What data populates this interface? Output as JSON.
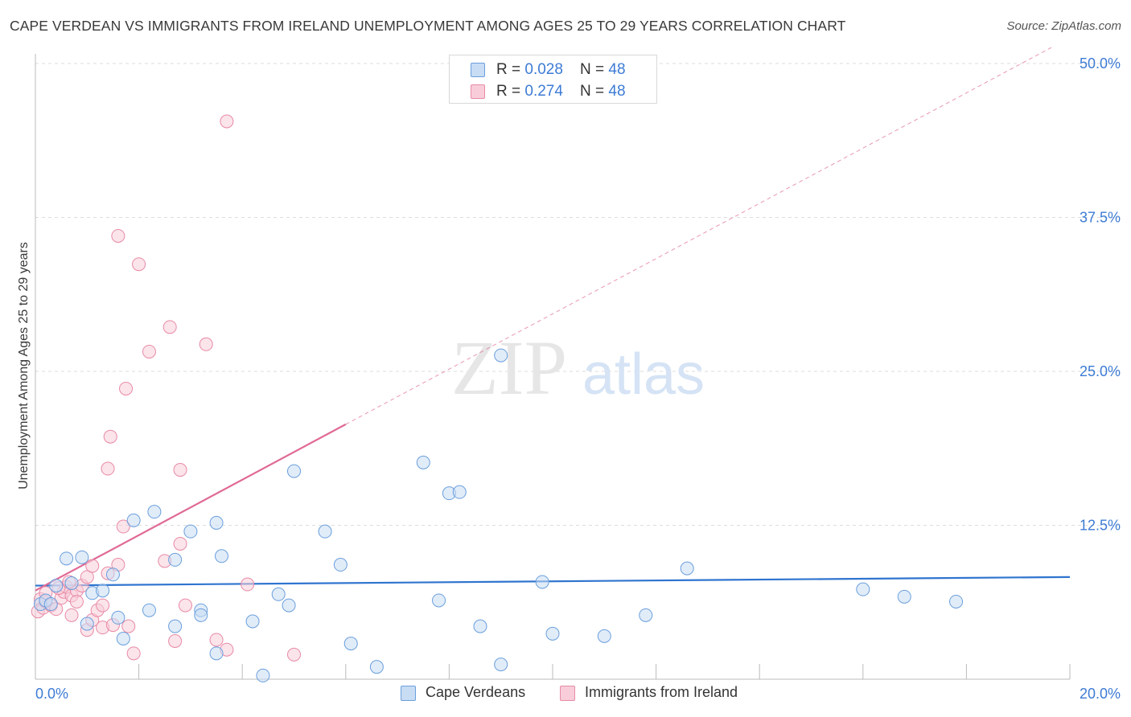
{
  "header": {
    "title": "CAPE VERDEAN VS IMMIGRANTS FROM IRELAND UNEMPLOYMENT AMONG AGES 25 TO 29 YEARS CORRELATION CHART",
    "source": "Source: ZipAtlas.com"
  },
  "watermark": {
    "zip": "ZIP",
    "atlas": "atlas"
  },
  "legend_top": {
    "rows": [
      {
        "r_label": "R = ",
        "r_value": "0.028",
        "n_label": "N = ",
        "n_value": "48"
      },
      {
        "r_label": "R = ",
        "r_value": "0.274",
        "n_label": "N = ",
        "n_value": "48"
      }
    ]
  },
  "colors": {
    "blue_fill": "#c8dcf4",
    "blue_stroke": "#6a9fdc",
    "blue_line": "#2f74cf",
    "pink_fill": "#f8cdd9",
    "pink_stroke": "#e88aa6",
    "pink_line": "#e06a95",
    "tick_label": "#3d7bd4",
    "grid": "#dddddd"
  },
  "chart_data": {
    "type": "scatter",
    "title": "CAPE VERDEAN VS IMMIGRANTS FROM IRELAND UNEMPLOYMENT AMONG AGES 25 TO 29 YEARS CORRELATION CHART",
    "xlabel": "",
    "ylabel": "Unemployment Among Ages 25 to 29 years",
    "xlim": [
      0,
      20
    ],
    "ylim": [
      0,
      50
    ],
    "x_tick_labels": [
      "0.0%",
      "20.0%"
    ],
    "y_ticks": [
      12.5,
      25,
      37.5,
      50
    ],
    "y_tick_labels": [
      "12.5%",
      "25.0%",
      "37.5%",
      "50.0%"
    ],
    "grid": true,
    "legend_position": "top-center",
    "series": [
      {
        "name": "Cape Verdeans",
        "color": "#6a9fdc",
        "r": 0.028,
        "n": 48,
        "trend": {
          "x": [
            0,
            20
          ],
          "y": [
            7.6,
            8.3
          ],
          "style": "solid"
        },
        "points": [
          [
            0.1,
            6.1
          ],
          [
            0.2,
            6.4
          ],
          [
            0.3,
            6.1
          ],
          [
            0.4,
            7.6
          ],
          [
            0.6,
            9.8
          ],
          [
            0.9,
            9.9
          ],
          [
            1.1,
            7.0
          ],
          [
            1.5,
            8.5
          ],
          [
            1.0,
            4.5
          ],
          [
            1.6,
            5.0
          ],
          [
            1.7,
            3.3
          ],
          [
            1.9,
            12.9
          ],
          [
            2.2,
            5.6
          ],
          [
            2.3,
            13.6
          ],
          [
            2.7,
            9.7
          ],
          [
            2.7,
            4.3
          ],
          [
            3.0,
            12.0
          ],
          [
            3.2,
            5.6
          ],
          [
            3.2,
            5.2
          ],
          [
            3.5,
            12.7
          ],
          [
            3.6,
            10.0
          ],
          [
            3.5,
            2.1
          ],
          [
            4.2,
            4.7
          ],
          [
            4.4,
            0.3
          ],
          [
            4.7,
            6.9
          ],
          [
            4.9,
            6.0
          ],
          [
            5.0,
            16.9
          ],
          [
            5.6,
            12.0
          ],
          [
            5.9,
            9.3
          ],
          [
            6.1,
            2.9
          ],
          [
            6.6,
            1.0
          ],
          [
            7.5,
            17.6
          ],
          [
            7.8,
            6.4
          ],
          [
            8.0,
            15.1
          ],
          [
            8.2,
            15.2
          ],
          [
            8.6,
            4.3
          ],
          [
            9.0,
            26.3
          ],
          [
            9.0,
            1.2
          ],
          [
            9.8,
            7.9
          ],
          [
            10.0,
            3.7
          ],
          [
            11.0,
            3.5
          ],
          [
            11.8,
            5.2
          ],
          [
            12.6,
            9.0
          ],
          [
            16.0,
            7.3
          ],
          [
            16.8,
            6.7
          ],
          [
            17.8,
            6.3
          ],
          [
            1.3,
            7.2
          ],
          [
            0.7,
            7.8
          ]
        ]
      },
      {
        "name": "Immigrants from Ireland",
        "color": "#e88aa6",
        "r": 0.274,
        "n": 48,
        "trend": {
          "x": [
            0,
            6
          ],
          "y": [
            7.2,
            20.7
          ],
          "style": "solid",
          "extended_to": [
            20,
            52.1
          ],
          "extended_style": "dashed"
        },
        "points": [
          [
            0.05,
            5.5
          ],
          [
            0.1,
            6.5
          ],
          [
            0.15,
            5.8
          ],
          [
            0.2,
            6.3
          ],
          [
            0.3,
            6.0
          ],
          [
            0.4,
            5.7
          ],
          [
            0.5,
            6.6
          ],
          [
            0.55,
            7.1
          ],
          [
            0.6,
            7.5
          ],
          [
            0.7,
            6.8
          ],
          [
            0.8,
            7.2
          ],
          [
            0.7,
            5.2
          ],
          [
            0.8,
            6.3
          ],
          [
            0.9,
            7.6
          ],
          [
            1.0,
            8.3
          ],
          [
            1.0,
            4.0
          ],
          [
            1.1,
            4.8
          ],
          [
            1.1,
            9.2
          ],
          [
            1.2,
            5.6
          ],
          [
            1.3,
            6.0
          ],
          [
            1.3,
            4.2
          ],
          [
            1.4,
            8.6
          ],
          [
            1.4,
            17.1
          ],
          [
            1.45,
            19.7
          ],
          [
            1.5,
            4.4
          ],
          [
            1.6,
            9.3
          ],
          [
            1.6,
            36.0
          ],
          [
            1.7,
            12.4
          ],
          [
            1.75,
            23.6
          ],
          [
            1.8,
            4.3
          ],
          [
            1.9,
            2.1
          ],
          [
            2.0,
            33.7
          ],
          [
            2.2,
            26.6
          ],
          [
            2.5,
            9.6
          ],
          [
            2.6,
            28.6
          ],
          [
            2.7,
            3.1
          ],
          [
            2.8,
            11.0
          ],
          [
            2.8,
            17.0
          ],
          [
            2.9,
            6.0
          ],
          [
            3.3,
            27.2
          ],
          [
            3.5,
            3.2
          ],
          [
            3.7,
            45.3
          ],
          [
            3.7,
            2.4
          ],
          [
            4.1,
            7.7
          ],
          [
            5.0,
            2.0
          ],
          [
            0.2,
            7.0
          ],
          [
            0.45,
            7.4
          ],
          [
            0.65,
            7.9
          ]
        ]
      }
    ]
  },
  "legend_bottom": {
    "items": [
      {
        "label": "Cape Verdeans"
      },
      {
        "label": "Immigrants from Ireland"
      }
    ]
  }
}
